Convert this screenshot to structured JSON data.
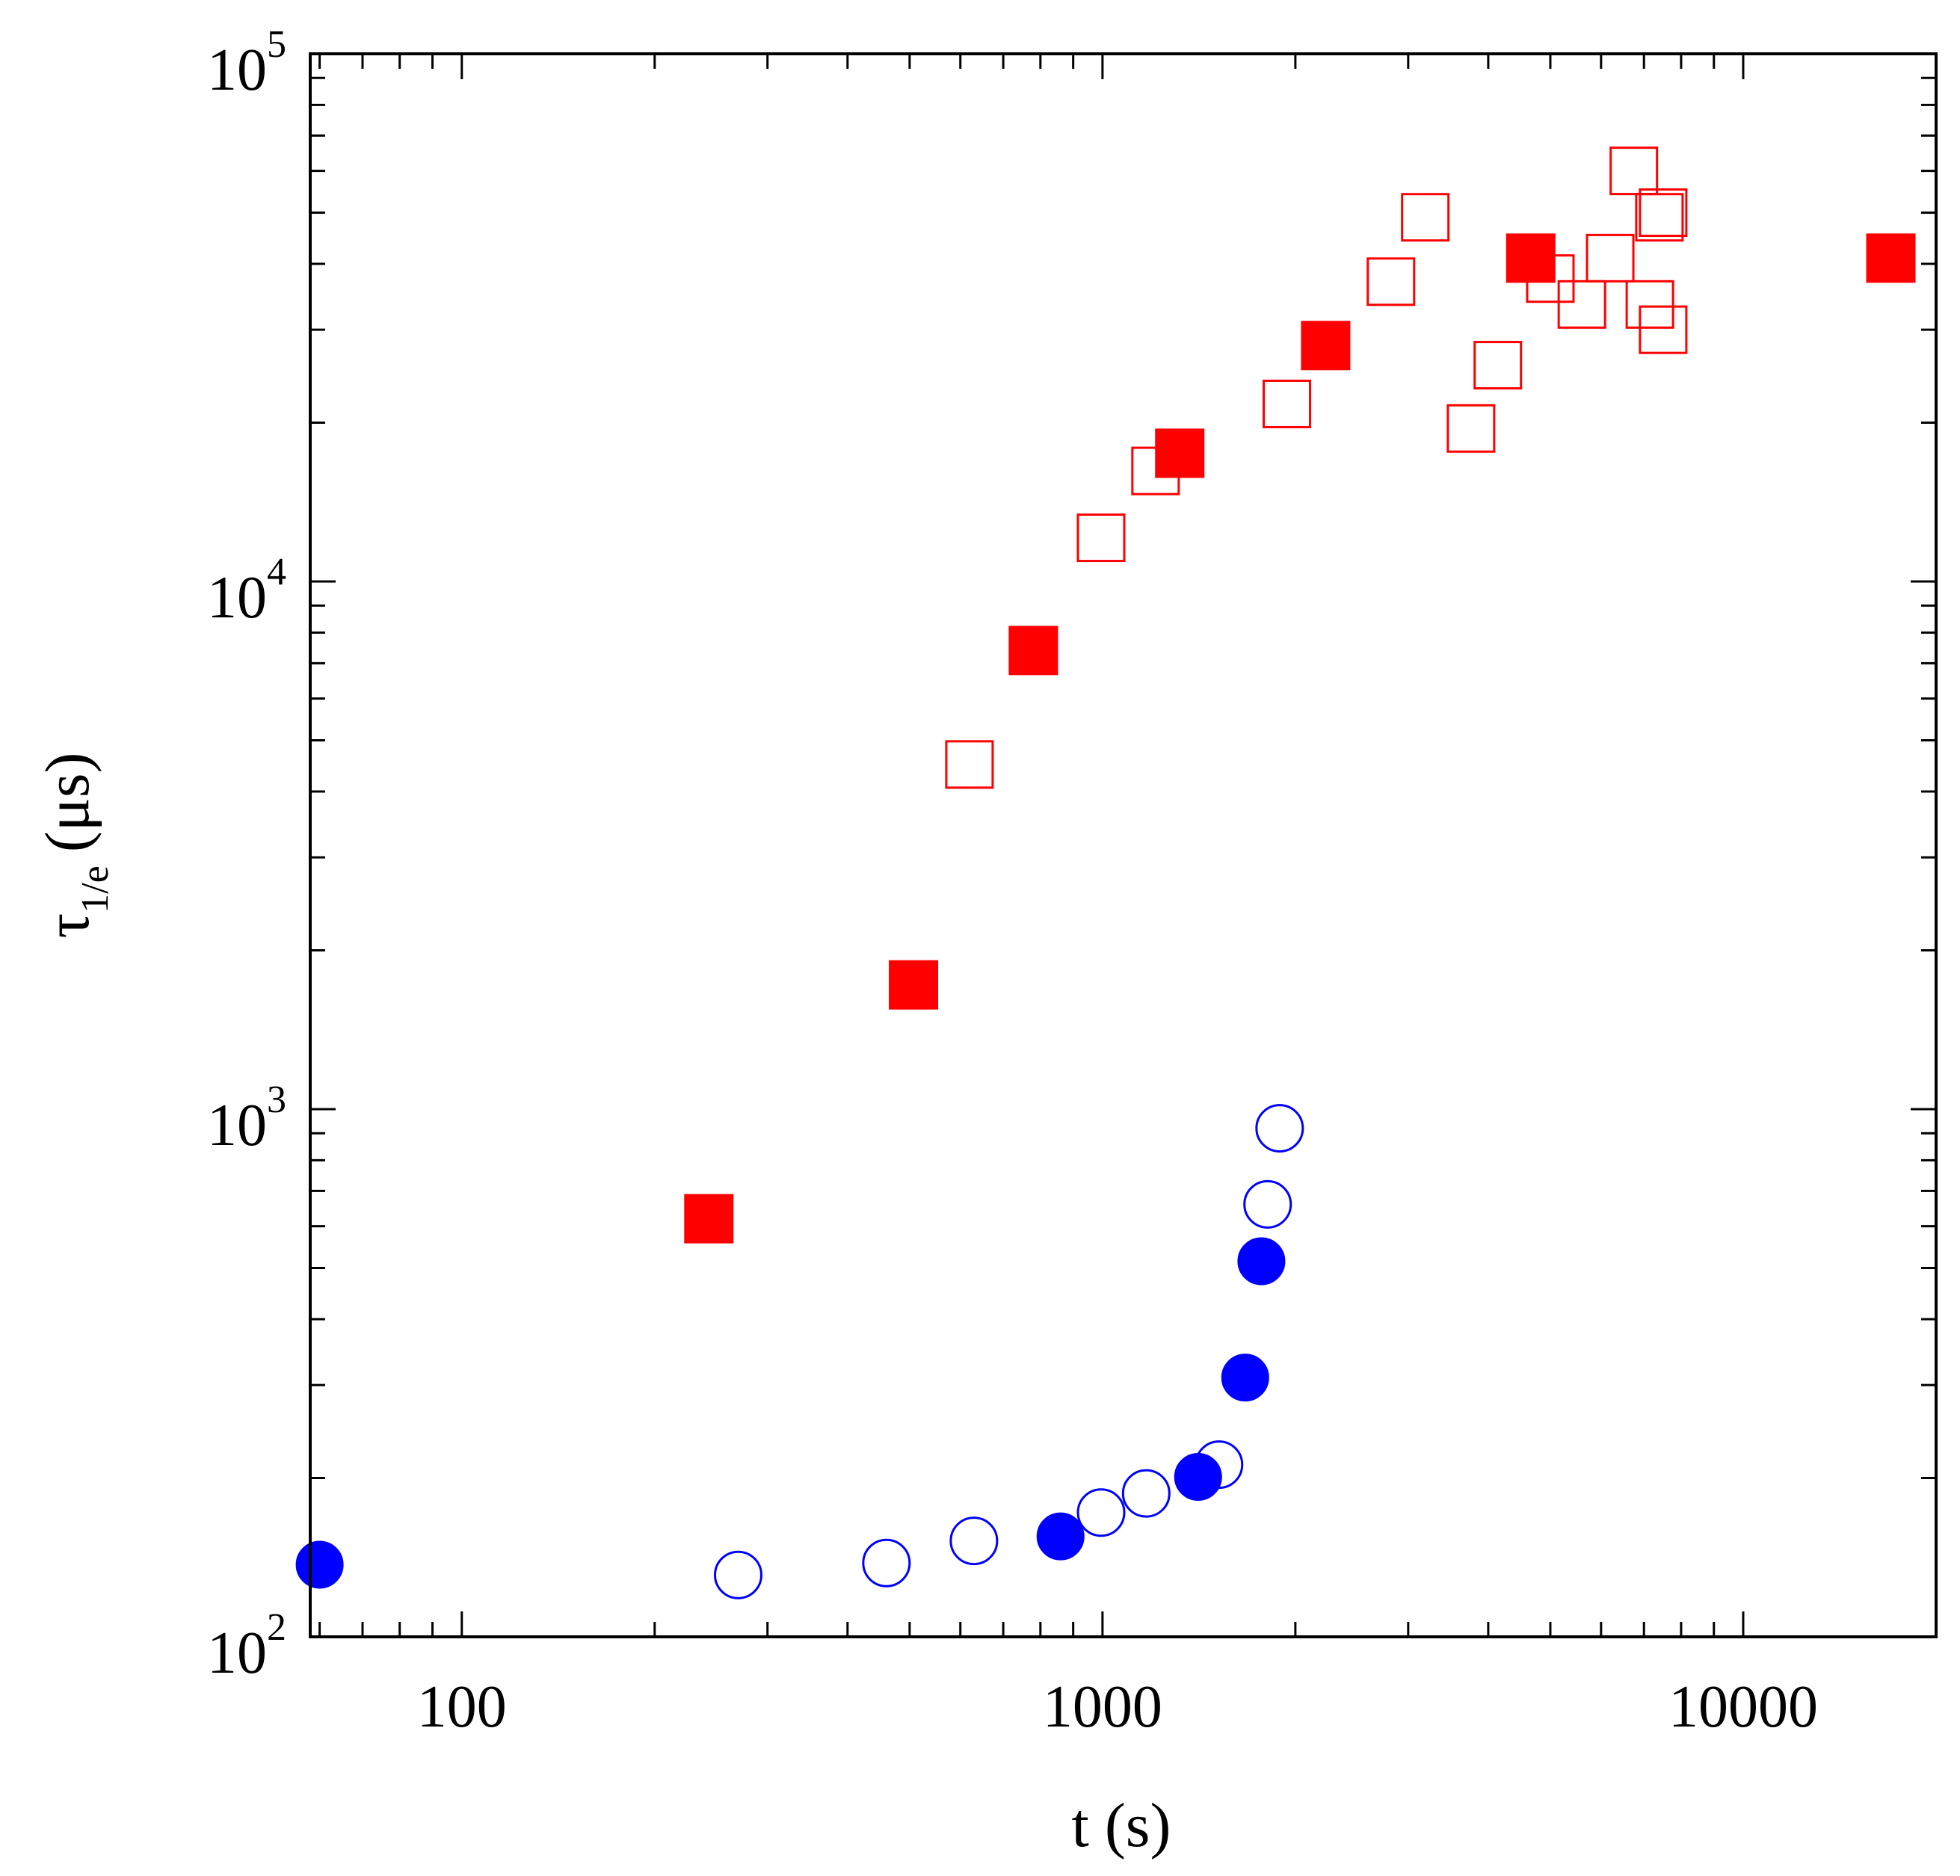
{
  "chart_data": {
    "type": "scatter",
    "title": "",
    "xlabel": "t (s)",
    "ylabel": {
      "symbol": "τ",
      "subscript": "1/e",
      "unit": "(μs)"
    },
    "xscale": "log",
    "yscale": "log",
    "xlim": [
      58,
      20000
    ],
    "ylim": [
      100,
      100000
    ],
    "grid": false,
    "legend": "none",
    "xticks": [
      {
        "value": 100,
        "label": "100"
      },
      {
        "value": 1000,
        "label": "1000"
      },
      {
        "value": 10000,
        "label": "10000"
      }
    ],
    "yticks": [
      {
        "value": 100,
        "base": "10",
        "exp": "2"
      },
      {
        "value": 1000,
        "base": "10",
        "exp": "3"
      },
      {
        "value": 10000,
        "base": "10",
        "exp": "4"
      },
      {
        "value": 100000,
        "base": "10",
        "exp": "5"
      }
    ],
    "series": [
      {
        "name": "red filled squares",
        "marker": "square",
        "filled": true,
        "color": "#ff0000",
        "points": [
          [
            243,
            620
          ],
          [
            507,
            1720
          ],
          [
            780,
            7400
          ],
          [
            1320,
            17500
          ],
          [
            2230,
            28000
          ],
          [
            4660,
            41000
          ],
          [
            17000,
            41000
          ]
        ]
      },
      {
        "name": "red open squares",
        "marker": "square",
        "filled": false,
        "color": "#ff0000",
        "points": [
          [
            620,
            4500
          ],
          [
            995,
            12100
          ],
          [
            1210,
            16200
          ],
          [
            1940,
            21700
          ],
          [
            2820,
            37000
          ],
          [
            3190,
            49000
          ],
          [
            3760,
            19500
          ],
          [
            4140,
            25700
          ],
          [
            5000,
            37500
          ],
          [
            5600,
            33500
          ],
          [
            6200,
            41000
          ],
          [
            6750,
            60000
          ],
          [
            7150,
            33500
          ],
          [
            7400,
            49000
          ],
          [
            7500,
            50000
          ],
          [
            7500,
            30000
          ]
        ]
      },
      {
        "name": "blue filled circles",
        "marker": "circle",
        "filled": true,
        "color": "#0000ff",
        "points": [
          [
            60,
            137
          ],
          [
            860,
            155
          ],
          [
            1410,
            201
          ],
          [
            1670,
            310
          ],
          [
            1770,
            515
          ]
        ]
      },
      {
        "name": "blue open circles",
        "marker": "circle",
        "filled": false,
        "color": "#0000ff",
        "points": [
          [
            270,
            131
          ],
          [
            460,
            138
          ],
          [
            630,
            152
          ],
          [
            995,
            172
          ],
          [
            1170,
            187
          ],
          [
            1520,
            212
          ],
          [
            1810,
            660
          ],
          [
            1890,
            920
          ]
        ]
      }
    ]
  }
}
